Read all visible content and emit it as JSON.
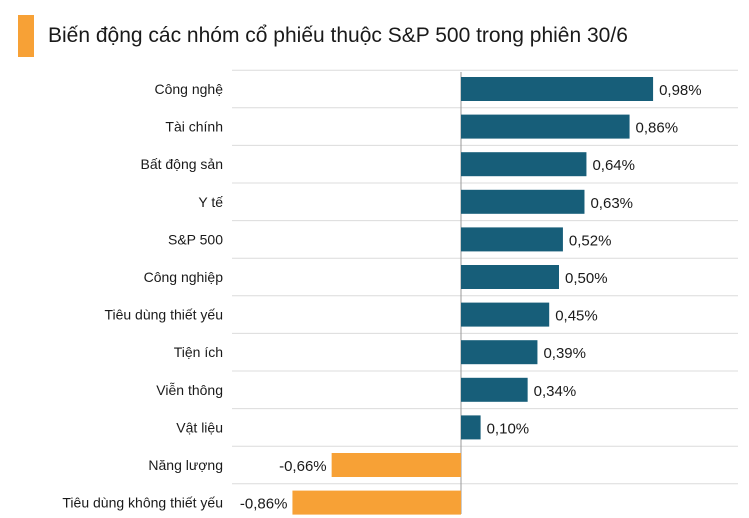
{
  "header": {
    "title": "Biến động các nhóm cổ phiếu thuộc S&P 500 trong phiên 30/6",
    "accent_color": "#F7A136"
  },
  "chart_data": {
    "type": "bar",
    "orientation": "horizontal",
    "title": "Biến động các nhóm cổ phiếu thuộc S&P 500 trong phiên 30/6",
    "xlabel": "",
    "ylabel": "",
    "grid": true,
    "categories": [
      "Công nghệ",
      "Tài chính",
      "Bất động sản",
      "Y tế",
      "S&P 500",
      "Công nghiệp",
      "Tiêu dùng thiết yếu",
      "Tiện ích",
      "Viễn thông",
      "Vật liệu",
      "Năng lượng",
      "Tiêu dùng không thiết yếu"
    ],
    "values": [
      0.98,
      0.86,
      0.64,
      0.63,
      0.52,
      0.5,
      0.45,
      0.39,
      0.34,
      0.1,
      -0.66,
      -0.86
    ],
    "value_labels": [
      "0,98%",
      "0,86%",
      "0,64%",
      "0,63%",
      "0,52%",
      "0,50%",
      "0,45%",
      "0,39%",
      "0,34%",
      "0,10%",
      "-0,66%",
      "-0,86%"
    ],
    "colors": {
      "positive": "#175E79",
      "negative": "#F7A136",
      "grid": "#DCDCDC",
      "axis": "#9A9A9A"
    }
  }
}
